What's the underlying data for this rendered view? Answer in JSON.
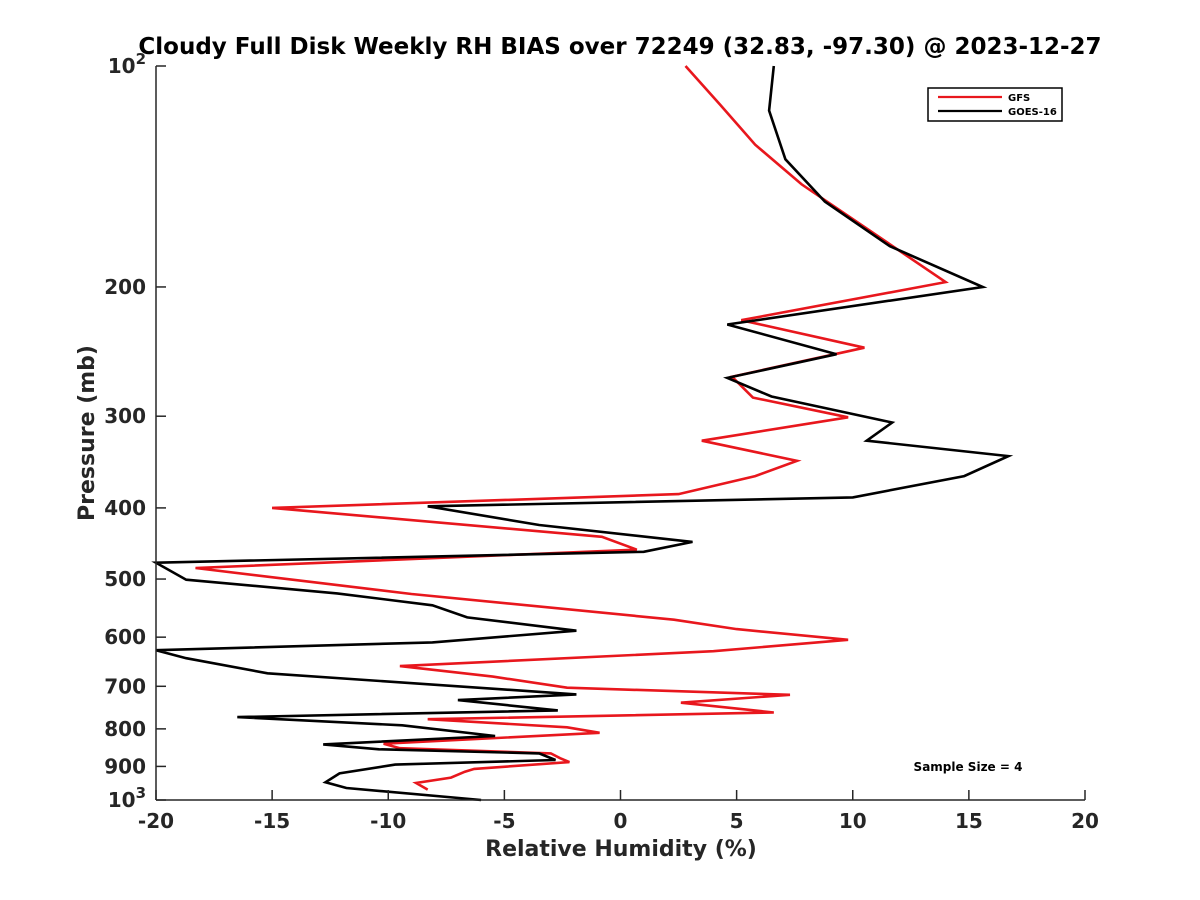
{
  "chart_data": {
    "type": "line",
    "title": "Cloudy Full Disk Weekly RH BIAS over 72249 (32.83, -97.30) @ 2023-12-27",
    "xlabel": "Relative Humidity (%)",
    "ylabel": "Pressure (mb)",
    "xlim": [
      -20,
      20
    ],
    "ylim": [
      100,
      1000
    ],
    "yscale": "log",
    "y_reversed": true,
    "grid": false,
    "legend_position": "top-right",
    "xticks": [
      {
        "value": -20,
        "label": "-20"
      },
      {
        "value": -15,
        "label": "-15"
      },
      {
        "value": -10,
        "label": "-10"
      },
      {
        "value": -5,
        "label": "-5"
      },
      {
        "value": 0,
        "label": "0"
      },
      {
        "value": 5,
        "label": "5"
      },
      {
        "value": 10,
        "label": "10"
      },
      {
        "value": 15,
        "label": "15"
      },
      {
        "value": 20,
        "label": "20"
      }
    ],
    "yticks": [
      {
        "value": 100,
        "base": "10",
        "exp": "2"
      },
      {
        "value": 200,
        "label": "200"
      },
      {
        "value": 300,
        "label": "300"
      },
      {
        "value": 400,
        "label": "400"
      },
      {
        "value": 500,
        "label": "500"
      },
      {
        "value": 600,
        "label": "600"
      },
      {
        "value": 700,
        "label": "700"
      },
      {
        "value": 800,
        "label": "800"
      },
      {
        "value": 900,
        "label": "900"
      },
      {
        "value": 1000,
        "base": "10",
        "exp": "3"
      }
    ],
    "series": [
      {
        "name": "GFS",
        "color": "#e8171d",
        "points": [
          [
            2.8,
            100
          ],
          [
            4.3,
            113
          ],
          [
            5.8,
            128
          ],
          [
            7.8,
            145
          ],
          [
            14.0,
            197
          ],
          [
            5.2,
            222
          ],
          [
            10.5,
            242
          ],
          [
            4.8,
            265
          ],
          [
            5.7,
            283
          ],
          [
            9.8,
            301
          ],
          [
            3.5,
            324
          ],
          [
            7.6,
            345
          ],
          [
            5.8,
            362
          ],
          [
            2.5,
            383
          ],
          [
            -15.0,
            400
          ],
          [
            -0.8,
            438
          ],
          [
            0.7,
            456
          ],
          [
            -18.3,
            483
          ],
          [
            -13.0,
            506
          ],
          [
            -9.0,
            524
          ],
          [
            2.3,
            568
          ],
          [
            5.0,
            585
          ],
          [
            9.8,
            605
          ],
          [
            4.0,
            627
          ],
          [
            -9.5,
            657
          ],
          [
            -5.5,
            679
          ],
          [
            -2.3,
            703
          ],
          [
            7.3,
            719
          ],
          [
            2.6,
            737
          ],
          [
            6.6,
            760
          ],
          [
            -8.3,
            776
          ],
          [
            -2.3,
            796
          ],
          [
            -0.9,
            810
          ],
          [
            -10.2,
            838
          ],
          [
            -9.5,
            850
          ],
          [
            -3.0,
            864
          ],
          [
            -2.6,
            877
          ],
          [
            -2.2,
            888
          ],
          [
            -6.3,
            907
          ],
          [
            -6.7,
            915
          ],
          [
            -7.3,
            932
          ],
          [
            -8.8,
            948
          ],
          [
            -8.3,
            968
          ]
        ]
      },
      {
        "name": "GOES-16",
        "color": "#000000",
        "points": [
          [
            6.6,
            100
          ],
          [
            6.4,
            115
          ],
          [
            7.1,
            134
          ],
          [
            8.8,
            153
          ],
          [
            11.6,
            176
          ],
          [
            15.6,
            200
          ],
          [
            4.6,
            225
          ],
          [
            9.3,
            247
          ],
          [
            4.6,
            266
          ],
          [
            6.5,
            282
          ],
          [
            11.7,
            306
          ],
          [
            10.6,
            324
          ],
          [
            16.7,
            340
          ],
          [
            14.8,
            362
          ],
          [
            10.0,
            387
          ],
          [
            -8.3,
            398
          ],
          [
            -3.5,
            422
          ],
          [
            3.1,
            445
          ],
          [
            1.0,
            459
          ],
          [
            -20.0,
            475
          ],
          [
            -18.7,
            501
          ],
          [
            -12.2,
            523
          ],
          [
            -8.1,
            543
          ],
          [
            -6.6,
            564
          ],
          [
            -1.9,
            588
          ],
          [
            -8.1,
            610
          ],
          [
            -20.0,
            625
          ],
          [
            -18.7,
            641
          ],
          [
            -15.2,
            672
          ],
          [
            -1.9,
            718
          ],
          [
            -7.0,
            731
          ],
          [
            -2.7,
            755
          ],
          [
            -16.5,
            771
          ],
          [
            -9.4,
            791
          ],
          [
            -5.4,
            818
          ],
          [
            -12.8,
            840
          ],
          [
            -10.4,
            853
          ],
          [
            -3.5,
            864
          ],
          [
            -2.8,
            882
          ],
          [
            -9.7,
            895
          ],
          [
            -12.1,
            920
          ],
          [
            -12.7,
            946
          ],
          [
            -11.8,
            963
          ],
          [
            -6.0,
            1000
          ]
        ]
      }
    ],
    "annotations": [
      {
        "text": "Sample Size = 4",
        "x": 12.5,
        "y": 900
      }
    ]
  }
}
